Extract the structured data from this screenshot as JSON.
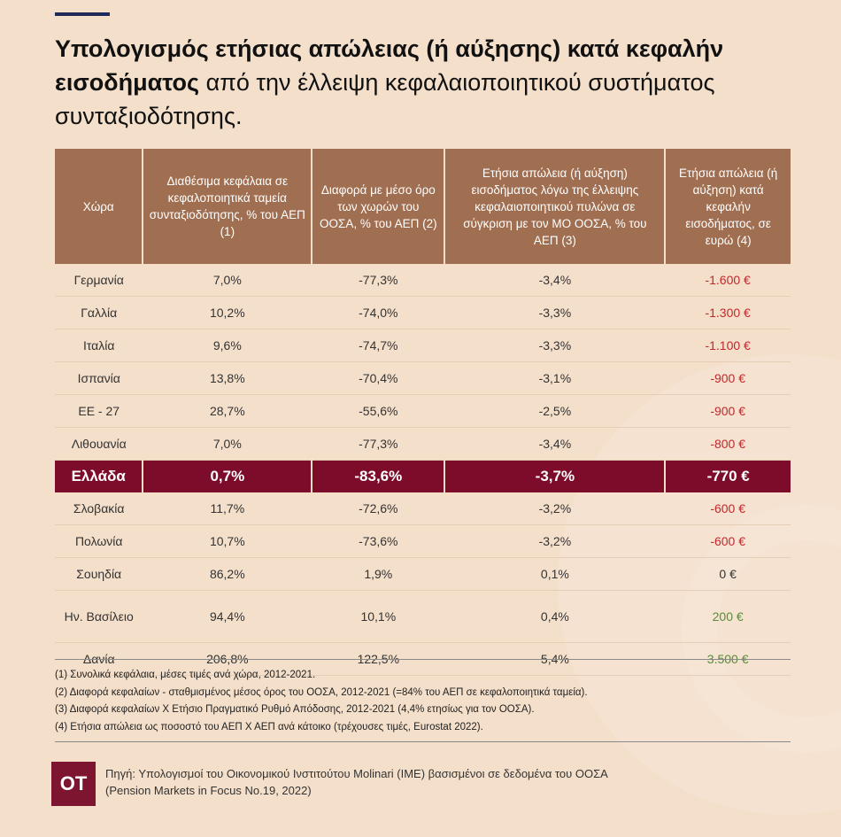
{
  "title": {
    "bold": "Υπολογισμός ετήσιας απώλειας (ή αύξησης) κατά κεφαλήν εισοδήματος",
    "light": "από την έλλειψη κεφαλαιοποιητικού συστήματος συνταξιοδότησης."
  },
  "table": {
    "headers": [
      "Χώρα",
      "Διαθέσιμα κεφάλαια σε κεφαλοποιητικά ταμεία συνταξιοδότησης, % του ΑΕΠ (1)",
      "Διαφορά με μέσο όρο των χωρών του ΟΟΣΑ, % του ΑΕΠ (2)",
      "Ετήσια απώλεια (ή αύξηση) εισοδήματος λόγω της έλλειψης κεφαλαιοποιητικού πυλώνα σε σύγκριση με τον ΜΟ ΟΟΣΑ, % του ΑΕΠ (3)",
      "Ετήσια απώλεια (ή αύξηση) κατά κεφαλήν εισοδήματος, σε ευρώ (4)"
    ],
    "rows": [
      [
        "Γερμανία",
        "7,0%",
        "-77,3%",
        "-3,4%",
        "-1.600 €"
      ],
      [
        "Γαλλία",
        "10,2%",
        "-74,0%",
        "-3,3%",
        "-1.300 €"
      ],
      [
        "Ιταλία",
        "9,6%",
        "-74,7%",
        "-3,3%",
        "-1.100 €"
      ],
      [
        "Ισπανία",
        "13,8%",
        "-70,4%",
        "-3,1%",
        "-900 €"
      ],
      [
        "ΕΕ - 27",
        "28,7%",
        "-55,6%",
        "-2,5%",
        "-900 €"
      ],
      [
        "Λιθουανία",
        "7,0%",
        "-77,3%",
        "-3,4%",
        "-800 €"
      ],
      [
        "Ελλάδα",
        "0,7%",
        "-83,6%",
        "-3,7%",
        "-770 €"
      ],
      [
        "Σλοβακία",
        "11,7%",
        "-72,6%",
        "-3,2%",
        "-600 €"
      ],
      [
        "Πολωνία",
        "10,7%",
        "-73,6%",
        "-3,2%",
        "-600 €"
      ],
      [
        "Σουηδία",
        "86,2%",
        "1,9%",
        "0,1%",
        "0 €"
      ],
      [
        "Ην. Βασίλειο",
        "94,4%",
        "10,1%",
        "0,4%",
        "200 €"
      ],
      [
        "Δανία",
        "206,8%",
        "122,5%",
        "5,4%",
        "3.500 €"
      ]
    ]
  },
  "notes": [
    "(1) Συνολικά κεφάλαια, μέσες τιμές ανά χώρα, 2012-2021.",
    "(2) Διαφορά κεφαλαίων - σταθμισμένος μέσος όρος του ΟΟΣΑ, 2012-2021 (=84% του ΑΕΠ σε κεφαλοποιητικά ταμεία).",
    "(3) Διαφορά κεφαλαίων Χ Ετήσιο Πραγματικό Ρυθμό Απόδοσης, 2012-2021 (4,4% ετησίως για τον ΟΟΣΑ).",
    "(4) Ετήσια απώλεια ως ποσοστό του ΑΕΠ Χ ΑΕΠ ανά κάτοικο (τρέχουσες τιμές, Eurostat 2022)."
  ],
  "source": {
    "line1": "Πηγή: Υπολογισμοί του Οικονομικού Ινστιτούτου Molinari (IME) βασισμένοι σε δεδομένα του ΟΟΣΑ",
    "line2": "(Pension Markets in Focus No.19, 2022)"
  },
  "logo": "ΟΤ",
  "colors": {
    "header": "#a06e50",
    "highlight": "#7d0c2b",
    "negative": "#c0282d",
    "positive": "#5a8a3a"
  }
}
